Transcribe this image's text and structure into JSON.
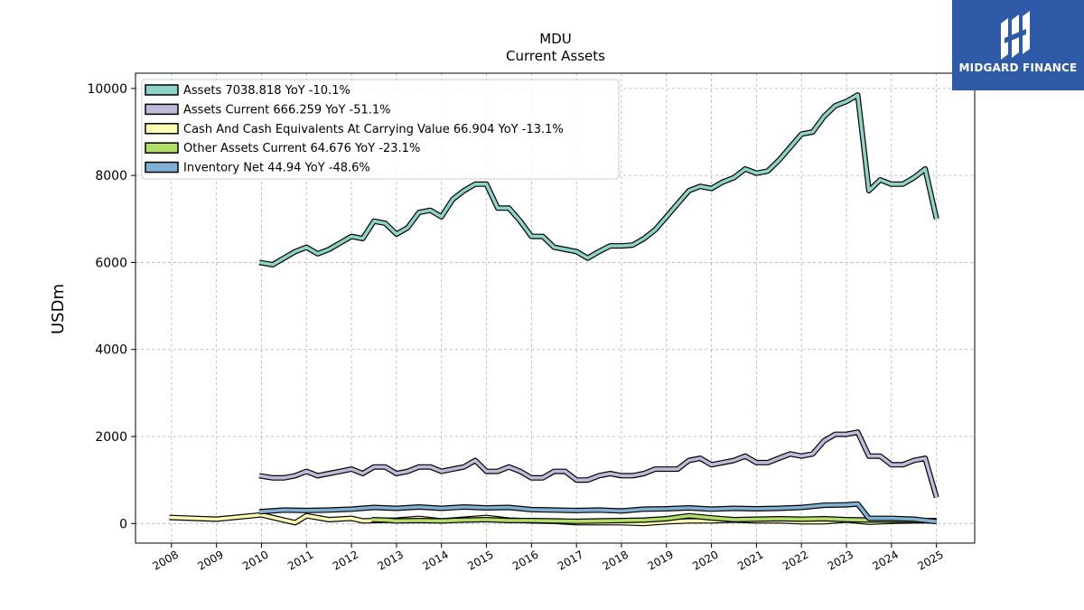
{
  "chart_data": {
    "type": "line",
    "title": "MDU",
    "subtitle": "Current  Assets",
    "ylabel": "USDm",
    "xlabel": "",
    "ylim": [
      -450,
      10350
    ],
    "xlim": [
      2007.2,
      2025.85
    ],
    "yticks": [
      0,
      2000,
      4000,
      6000,
      8000,
      10000
    ],
    "xticks": [
      "2008",
      "2009",
      "2010",
      "2011",
      "2012",
      "2013",
      "2014",
      "2015",
      "2016",
      "2017",
      "2018",
      "2019",
      "2020",
      "2021",
      "2022",
      "2023",
      "2024",
      "2025"
    ],
    "grid": true,
    "legend_position": "top-left",
    "series": [
      {
        "name": "Assets  7038.818 YoY -10.1%",
        "color": "#8dd3c7",
        "x": [
          2009.95,
          2010.25,
          2010.5,
          2010.75,
          2011.0,
          2011.25,
          2011.5,
          2011.75,
          2012.0,
          2012.25,
          2012.5,
          2012.75,
          2013.0,
          2013.25,
          2013.5,
          2013.75,
          2014.0,
          2014.25,
          2014.5,
          2014.75,
          2015.0,
          2015.25,
          2015.5,
          2015.75,
          2016.0,
          2016.25,
          2016.5,
          2016.75,
          2017.0,
          2017.25,
          2017.5,
          2017.75,
          2018.0,
          2018.25,
          2018.5,
          2018.75,
          2019.0,
          2019.25,
          2019.5,
          2019.75,
          2020.0,
          2020.25,
          2020.5,
          2020.75,
          2021.0,
          2021.25,
          2021.5,
          2021.75,
          2022.0,
          2022.25,
          2022.5,
          2022.75,
          2023.0,
          2023.25,
          2023.5,
          2023.75,
          2024.0,
          2024.25,
          2024.5,
          2024.75,
          2025.0
        ],
        "y": [
          6000,
          5950,
          6100,
          6250,
          6350,
          6200,
          6300,
          6450,
          6600,
          6550,
          6950,
          6900,
          6650,
          6800,
          7150,
          7200,
          7050,
          7450,
          7650,
          7800,
          7800,
          7250,
          7250,
          6950,
          6600,
          6600,
          6350,
          6300,
          6250,
          6100,
          6250,
          6380,
          6380,
          6400,
          6550,
          6750,
          7050,
          7350,
          7650,
          7750,
          7700,
          7850,
          7950,
          8150,
          8050,
          8100,
          8350,
          8650,
          8950,
          9000,
          9350,
          9600,
          9700,
          9850,
          7650,
          7900,
          7800,
          7800,
          7950,
          8150,
          7000
        ]
      },
      {
        "name": "Assets Current  666.259 YoY -51.1%",
        "color": "#bebada",
        "x": [
          2009.95,
          2010.25,
          2010.5,
          2010.75,
          2011.0,
          2011.25,
          2011.5,
          2011.75,
          2012.0,
          2012.25,
          2012.5,
          2012.75,
          2013.0,
          2013.25,
          2013.5,
          2013.75,
          2014.0,
          2014.25,
          2014.5,
          2014.75,
          2015.0,
          2015.25,
          2015.5,
          2015.75,
          2016.0,
          2016.25,
          2016.5,
          2016.75,
          2017.0,
          2017.25,
          2017.5,
          2017.75,
          2018.0,
          2018.25,
          2018.5,
          2018.75,
          2019.0,
          2019.25,
          2019.5,
          2019.75,
          2020.0,
          2020.25,
          2020.5,
          2020.75,
          2021.0,
          2021.25,
          2021.5,
          2021.75,
          2022.0,
          2022.25,
          2022.5,
          2022.75,
          2023.0,
          2023.25,
          2023.5,
          2023.75,
          2024.0,
          2024.25,
          2024.5,
          2024.75,
          2025.0
        ],
        "y": [
          1100,
          1050,
          1050,
          1100,
          1200,
          1100,
          1150,
          1200,
          1250,
          1150,
          1300,
          1300,
          1150,
          1200,
          1300,
          1300,
          1200,
          1250,
          1300,
          1450,
          1200,
          1200,
          1300,
          1200,
          1050,
          1050,
          1200,
          1200,
          1000,
          1000,
          1100,
          1150,
          1100,
          1100,
          1150,
          1250,
          1250,
          1250,
          1450,
          1500,
          1350,
          1400,
          1450,
          1550,
          1400,
          1400,
          1500,
          1600,
          1550,
          1600,
          1900,
          2050,
          2050,
          2100,
          1550,
          1550,
          1350,
          1350,
          1450,
          1500,
          600
        ]
      },
      {
        "name": "Cash And Cash Equivalents At Carrying Value  66.904 YoY -13.1%",
        "color": "#ffffb3",
        "x": [
          2007.95,
          2009.0,
          2010.0,
          2010.75,
          2011.0,
          2011.5,
          2012.0,
          2012.25,
          2013.0,
          2013.5,
          2014.0,
          2014.5,
          2015.0,
          2015.5,
          2016.0,
          2016.5,
          2017.0,
          2017.5,
          2018.0,
          2018.5,
          2019.0,
          2019.5,
          2020.0,
          2020.5,
          2021.0,
          2021.5,
          2022.0,
          2022.5,
          2023.0,
          2023.5,
          2024.0,
          2024.5,
          2025.0
        ],
        "y": [
          140,
          100,
          200,
          20,
          180,
          90,
          120,
          60,
          80,
          120,
          60,
          100,
          140,
          80,
          60,
          50,
          20,
          20,
          20,
          0,
          40,
          60,
          60,
          80,
          60,
          60,
          40,
          40,
          80,
          30,
          50,
          60,
          67
        ]
      },
      {
        "name": "Other Assets Current  64.676 YoY -23.1%",
        "color": "#b3de69",
        "x": [
          2012.45,
          2012.75,
          2013.0,
          2013.5,
          2014.0,
          2014.5,
          2015.0,
          2015.5,
          2016.0,
          2016.5,
          2017.0,
          2017.5,
          2018.0,
          2018.5,
          2019.0,
          2019.5,
          2020.0,
          2020.5,
          2021.0,
          2021.5,
          2022.0,
          2022.5,
          2023.0,
          2023.5,
          2024.0,
          2024.5,
          2025.0
        ],
        "y": [
          90,
          80,
          60,
          70,
          60,
          80,
          90,
          70,
          70,
          60,
          50,
          60,
          70,
          80,
          110,
          180,
          130,
          90,
          100,
          110,
          100,
          110,
          90,
          80,
          80,
          70,
          65
        ]
      },
      {
        "name": "Inventory Net  44.94 YoY -48.6%",
        "color": "#80b1d3",
        "x": [
          2009.95,
          2010.5,
          2011.0,
          2011.5,
          2012.0,
          2012.5,
          2013.0,
          2013.5,
          2014.0,
          2014.5,
          2015.0,
          2015.5,
          2016.0,
          2016.5,
          2017.0,
          2017.5,
          2018.0,
          2018.5,
          2019.0,
          2019.5,
          2020.0,
          2020.5,
          2021.0,
          2021.5,
          2022.0,
          2022.5,
          2023.0,
          2023.25,
          2023.5,
          2024.0,
          2024.5,
          2025.0
        ],
        "y": [
          270,
          310,
          300,
          310,
          330,
          370,
          350,
          380,
          350,
          380,
          360,
          370,
          320,
          310,
          300,
          310,
          290,
          330,
          340,
          360,
          330,
          350,
          340,
          350,
          370,
          420,
          430,
          450,
          120,
          120,
          100,
          45
        ]
      }
    ]
  },
  "logo": {
    "text": "MIDGARD FINANCE"
  }
}
